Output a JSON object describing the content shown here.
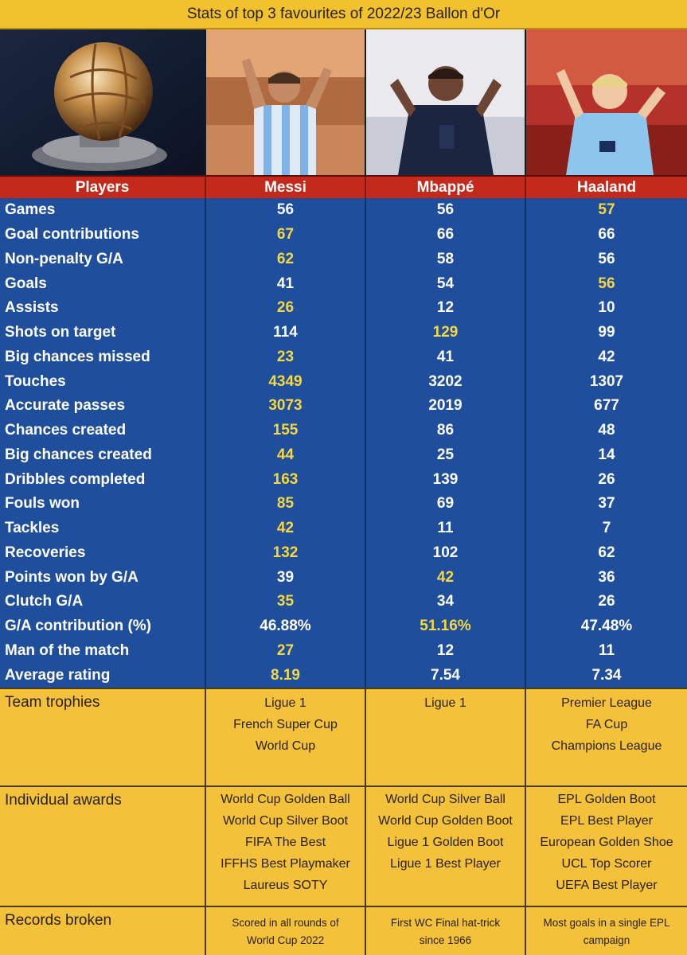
{
  "title": "Stats of top 3 favourites of 2022/23 Ballon d'Or",
  "colors": {
    "title_bg": "#f2c12e",
    "header_bg": "#c42a1c",
    "stats_bg": "#1f4f9c",
    "highlight": "#f5d742",
    "section_bg": "#f4c13a"
  },
  "header": {
    "label": "Players",
    "players": [
      "Messi",
      "Mbappé",
      "Haaland"
    ]
  },
  "stats": [
    {
      "label": "Games",
      "values": [
        "56",
        "56",
        "57"
      ],
      "best": [
        2
      ]
    },
    {
      "label": "Goal contributions",
      "values": [
        "67",
        "66",
        "66"
      ],
      "best": [
        0
      ]
    },
    {
      "label": "Non-penalty G/A",
      "values": [
        "62",
        "58",
        "56"
      ],
      "best": [
        0
      ]
    },
    {
      "label": "Goals",
      "values": [
        "41",
        "54",
        "56"
      ],
      "best": [
        2
      ]
    },
    {
      "label": "Assists",
      "values": [
        "26",
        "12",
        "10"
      ],
      "best": [
        0
      ]
    },
    {
      "label": "Shots on target",
      "values": [
        "114",
        "129",
        "99"
      ],
      "best": [
        1
      ]
    },
    {
      "label": "Big chances missed",
      "values": [
        "23",
        "41",
        "42"
      ],
      "best": [
        0
      ]
    },
    {
      "label": "Touches",
      "values": [
        "4349",
        "3202",
        "1307"
      ],
      "best": [
        0
      ]
    },
    {
      "label": "Accurate passes",
      "values": [
        "3073",
        "2019",
        "677"
      ],
      "best": [
        0
      ]
    },
    {
      "label": "Chances created",
      "values": [
        "155",
        "86",
        "48"
      ],
      "best": [
        0
      ]
    },
    {
      "label": "Big chances created",
      "values": [
        "44",
        "25",
        "14"
      ],
      "best": [
        0
      ]
    },
    {
      "label": "Dribbles completed",
      "values": [
        "163",
        "139",
        "26"
      ],
      "best": [
        0
      ]
    },
    {
      "label": "Fouls won",
      "values": [
        "85",
        "69",
        "37"
      ],
      "best": [
        0
      ]
    },
    {
      "label": "Tackles",
      "values": [
        "42",
        "11",
        "7"
      ],
      "best": [
        0
      ]
    },
    {
      "label": "Recoveries",
      "values": [
        "132",
        "102",
        "62"
      ],
      "best": [
        0
      ]
    },
    {
      "label": "Points won by G/A",
      "values": [
        "39",
        "42",
        "36"
      ],
      "best": [
        1
      ]
    },
    {
      "label": "Clutch G/A",
      "values": [
        "35",
        "34",
        "26"
      ],
      "best": [
        0
      ]
    },
    {
      "label": "G/A contribution (%)",
      "values": [
        "46.88%",
        "51.16%",
        "47.48%"
      ],
      "best": [
        1
      ]
    },
    {
      "label": "Man of the match",
      "values": [
        "27",
        "12",
        "11"
      ],
      "best": [
        0
      ]
    },
    {
      "label": "Average rating",
      "values": [
        "8.19",
        "7.54",
        "7.34"
      ],
      "best": [
        0
      ]
    }
  ],
  "team_trophies": {
    "label": "Team trophies",
    "players": [
      [
        "Ligue 1",
        "French Super Cup",
        "World Cup"
      ],
      [
        "Ligue 1"
      ],
      [
        "Premier League",
        "FA Cup",
        "Champions League"
      ]
    ]
  },
  "individual_awards": {
    "label": "Individual awards",
    "players": [
      [
        "World Cup Golden Ball",
        "World Cup Silver Boot",
        "FIFA The Best",
        "IFFHS Best Playmaker",
        "Laureus SOTY"
      ],
      [
        "World Cup Silver Ball",
        "World Cup Golden Boot",
        "Ligue 1 Golden Boot",
        "Ligue 1 Best Player"
      ],
      [
        "EPL Golden Boot",
        "EPL Best Player",
        "European Golden Shoe",
        "UCL Top Scorer",
        "UEFA Best Player"
      ]
    ]
  },
  "records_broken": {
    "label": "Records broken",
    "players": [
      [
        "Scored in all rounds of",
        "World Cup 2022"
      ],
      [
        "First WC Final hat-trick",
        "since 1966"
      ],
      [
        "Most goals in a single EPL",
        "campaign"
      ]
    ]
  }
}
